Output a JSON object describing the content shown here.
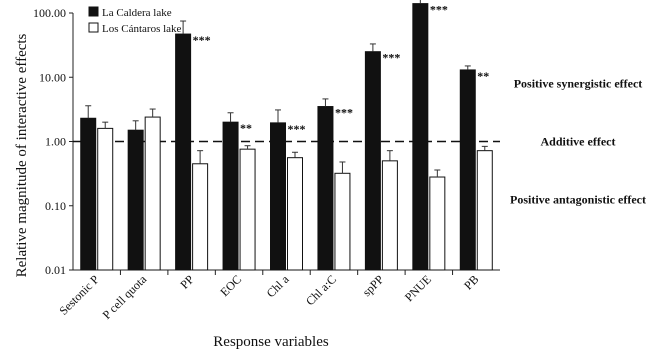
{
  "chart_data": {
    "type": "bar",
    "y_scale": "log",
    "ylabel": "Relative magnitude of interactive effects",
    "xlabel": "Response variables",
    "ylim": [
      0.01,
      100
    ],
    "yticks": [
      {
        "value": 100,
        "label": "100.00"
      },
      {
        "value": 10,
        "label": "10.00"
      },
      {
        "value": 1,
        "label": "1.00"
      },
      {
        "value": 0.1,
        "label": "0.10"
      },
      {
        "value": 0.01,
        "label": "0.01"
      }
    ],
    "categories": [
      "Sestonic P",
      "P cell quota",
      "PP",
      "EOC",
      "Chl a",
      "Chl a:C",
      "spPP",
      "PNUE",
      "PB"
    ],
    "series": [
      {
        "name": "La Caldera lake",
        "color": "#111111",
        "values": [
          2.3,
          1.5,
          47,
          2.0,
          1.95,
          3.5,
          25,
          140,
          13
        ],
        "error_upper": [
          3.6,
          2.1,
          75,
          2.8,
          3.1,
          4.6,
          33,
          165,
          15
        ]
      },
      {
        "name": "Los Cántaros lake",
        "color": "#ffffff",
        "values": [
          1.6,
          2.4,
          0.45,
          0.76,
          0.56,
          0.32,
          0.5,
          0.28,
          0.72
        ],
        "error_upper": [
          2.0,
          3.2,
          0.72,
          0.86,
          0.68,
          0.48,
          0.72,
          0.36,
          0.84
        ]
      }
    ],
    "significance": [
      {
        "category": "PP",
        "label": "***"
      },
      {
        "category": "EOC",
        "label": "**"
      },
      {
        "category": "Chl a",
        "label": "***"
      },
      {
        "category": "Chl a:C",
        "label": "***"
      },
      {
        "category": "spPP",
        "label": "***"
      },
      {
        "category": "PNUE",
        "label": "***"
      },
      {
        "category": "PB",
        "label": "**"
      }
    ],
    "reference_line": {
      "value": 1,
      "style": "dashed"
    },
    "annotations": [
      {
        "text": "Positive synergistic effect",
        "value": 8
      },
      {
        "text": "Additive effect",
        "value": 1
      },
      {
        "text": "Positive antagonistic effect",
        "value": 0.125
      }
    ],
    "legend_position": "top-left",
    "grid": false
  }
}
